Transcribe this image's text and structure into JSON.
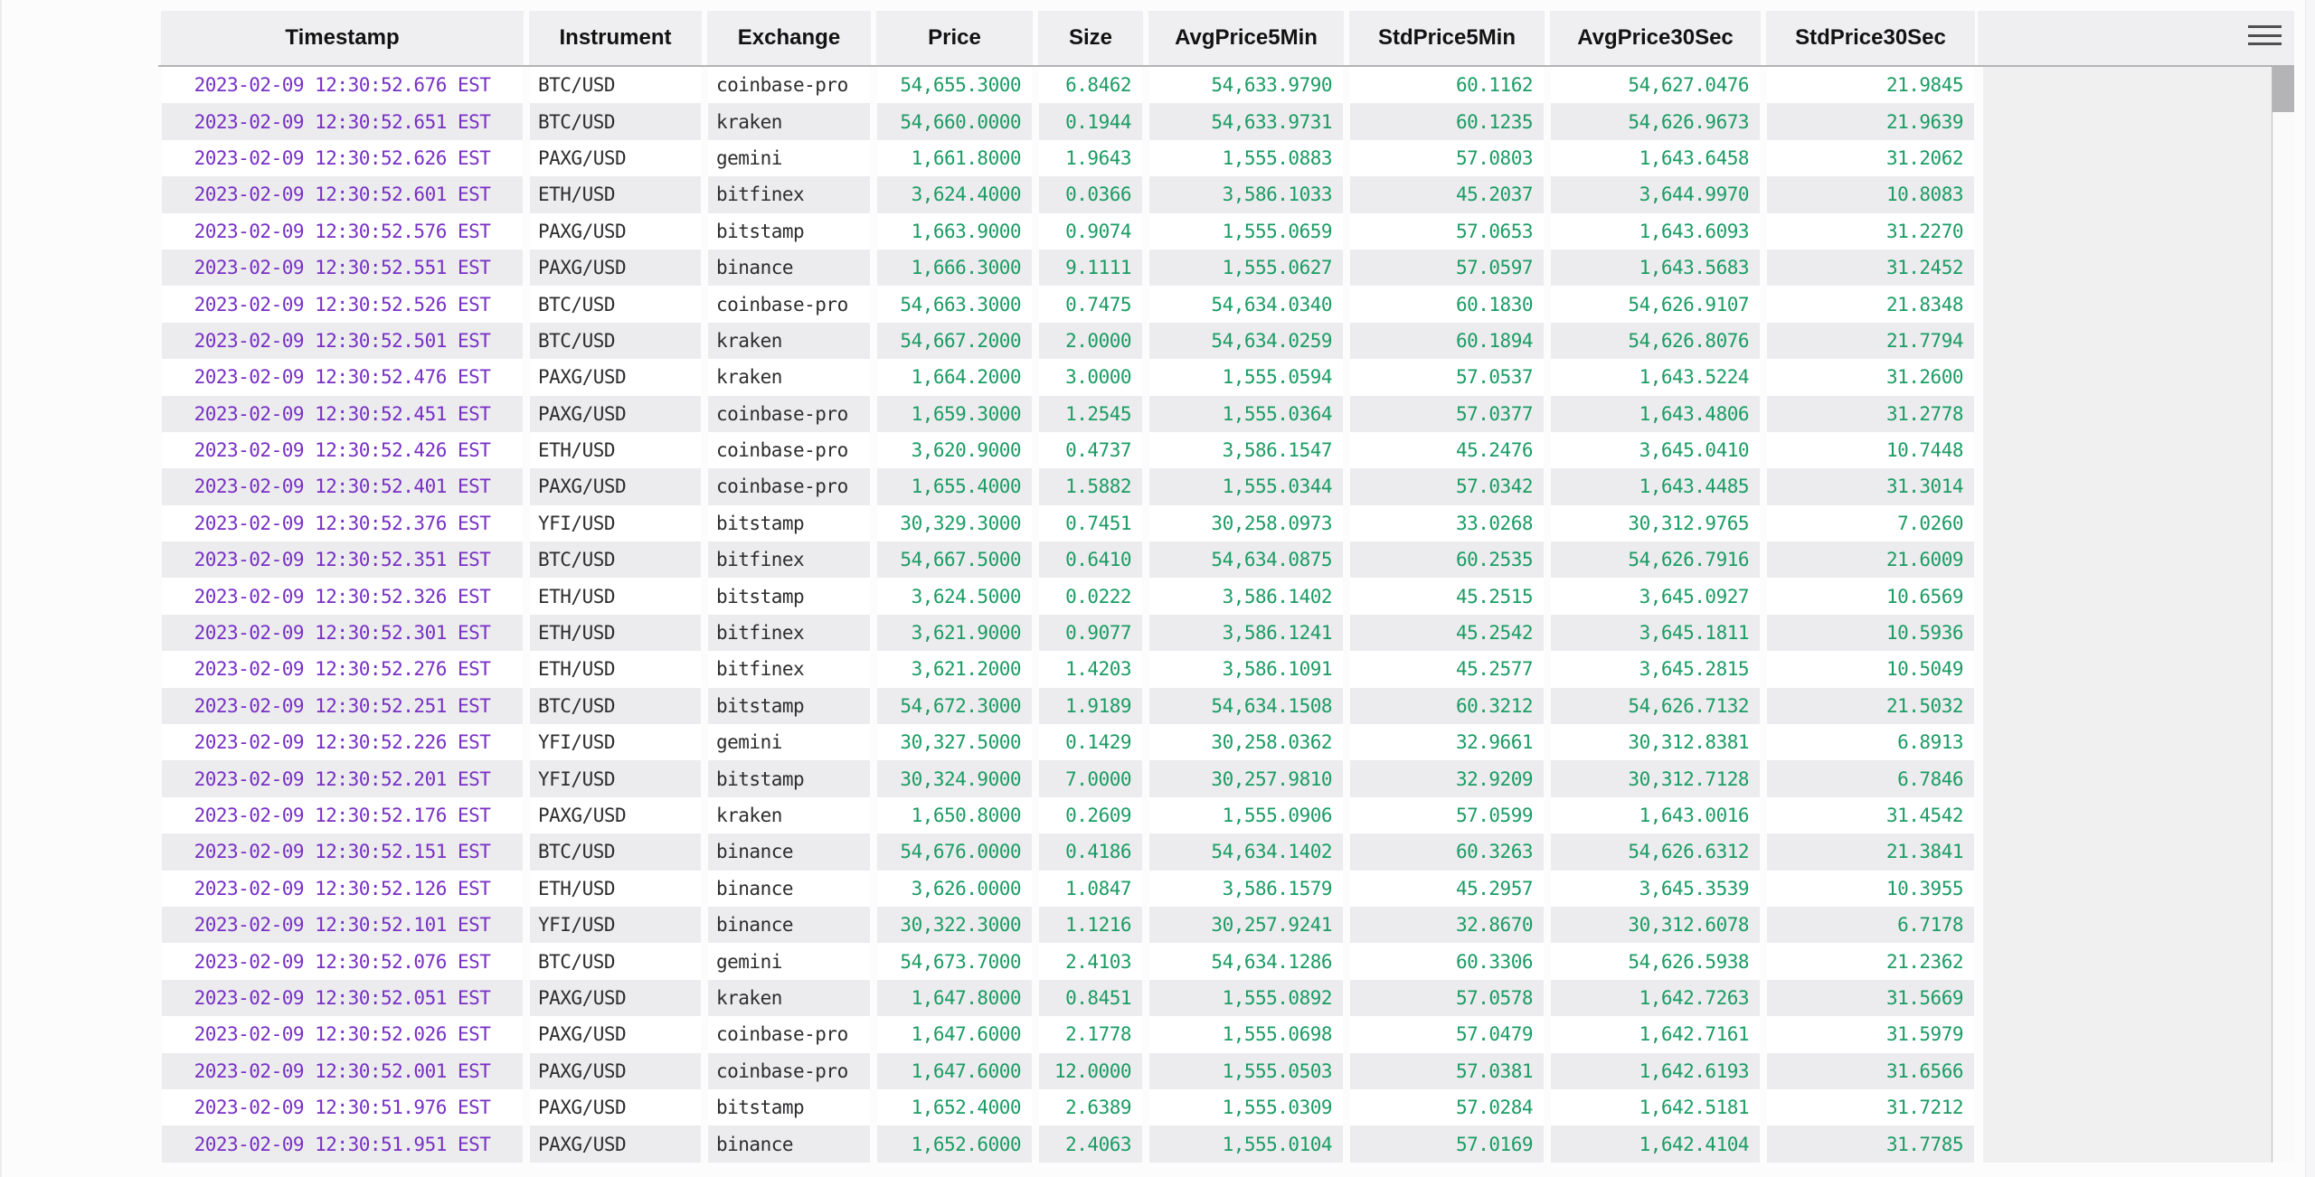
{
  "theme": {
    "datetime_color": "#7730c4",
    "number_color": "#1b9c64",
    "string_color": "#2d2d2f",
    "header_background": "#efeff1",
    "stripe_background": "#ececee"
  },
  "controls": {
    "menu_icon": "hamburger-menu-icon"
  },
  "table": {
    "columns": [
      "Timestamp",
      "Instrument",
      "Exchange",
      "Price",
      "Size",
      "AvgPrice5Min",
      "StdPrice5Min",
      "AvgPrice30Sec",
      "StdPrice30Sec"
    ],
    "col_types": [
      "datetime",
      "string",
      "string",
      "number",
      "number",
      "number",
      "number",
      "number",
      "number"
    ],
    "rows": [
      [
        "2023-02-09 12:30:52.676 EST",
        "BTC/USD",
        "coinbase-pro",
        "54,655.3000",
        "6.8462",
        "54,633.9790",
        "60.1162",
        "54,627.0476",
        "21.9845"
      ],
      [
        "2023-02-09 12:30:52.651 EST",
        "BTC/USD",
        "kraken",
        "54,660.0000",
        "0.1944",
        "54,633.9731",
        "60.1235",
        "54,626.9673",
        "21.9639"
      ],
      [
        "2023-02-09 12:30:52.626 EST",
        "PAXG/USD",
        "gemini",
        "1,661.8000",
        "1.9643",
        "1,555.0883",
        "57.0803",
        "1,643.6458",
        "31.2062"
      ],
      [
        "2023-02-09 12:30:52.601 EST",
        "ETH/USD",
        "bitfinex",
        "3,624.4000",
        "0.0366",
        "3,586.1033",
        "45.2037",
        "3,644.9970",
        "10.8083"
      ],
      [
        "2023-02-09 12:30:52.576 EST",
        "PAXG/USD",
        "bitstamp",
        "1,663.9000",
        "0.9074",
        "1,555.0659",
        "57.0653",
        "1,643.6093",
        "31.2270"
      ],
      [
        "2023-02-09 12:30:52.551 EST",
        "PAXG/USD",
        "binance",
        "1,666.3000",
        "9.1111",
        "1,555.0627",
        "57.0597",
        "1,643.5683",
        "31.2452"
      ],
      [
        "2023-02-09 12:30:52.526 EST",
        "BTC/USD",
        "coinbase-pro",
        "54,663.3000",
        "0.7475",
        "54,634.0340",
        "60.1830",
        "54,626.9107",
        "21.8348"
      ],
      [
        "2023-02-09 12:30:52.501 EST",
        "BTC/USD",
        "kraken",
        "54,667.2000",
        "2.0000",
        "54,634.0259",
        "60.1894",
        "54,626.8076",
        "21.7794"
      ],
      [
        "2023-02-09 12:30:52.476 EST",
        "PAXG/USD",
        "kraken",
        "1,664.2000",
        "3.0000",
        "1,555.0594",
        "57.0537",
        "1,643.5224",
        "31.2600"
      ],
      [
        "2023-02-09 12:30:52.451 EST",
        "PAXG/USD",
        "coinbase-pro",
        "1,659.3000",
        "1.2545",
        "1,555.0364",
        "57.0377",
        "1,643.4806",
        "31.2778"
      ],
      [
        "2023-02-09 12:30:52.426 EST",
        "ETH/USD",
        "coinbase-pro",
        "3,620.9000",
        "0.4737",
        "3,586.1547",
        "45.2476",
        "3,645.0410",
        "10.7448"
      ],
      [
        "2023-02-09 12:30:52.401 EST",
        "PAXG/USD",
        "coinbase-pro",
        "1,655.4000",
        "1.5882",
        "1,555.0344",
        "57.0342",
        "1,643.4485",
        "31.3014"
      ],
      [
        "2023-02-09 12:30:52.376 EST",
        "YFI/USD",
        "bitstamp",
        "30,329.3000",
        "0.7451",
        "30,258.0973",
        "33.0268",
        "30,312.9765",
        "7.0260"
      ],
      [
        "2023-02-09 12:30:52.351 EST",
        "BTC/USD",
        "bitfinex",
        "54,667.5000",
        "0.6410",
        "54,634.0875",
        "60.2535",
        "54,626.7916",
        "21.6009"
      ],
      [
        "2023-02-09 12:30:52.326 EST",
        "ETH/USD",
        "bitstamp",
        "3,624.5000",
        "0.0222",
        "3,586.1402",
        "45.2515",
        "3,645.0927",
        "10.6569"
      ],
      [
        "2023-02-09 12:30:52.301 EST",
        "ETH/USD",
        "bitfinex",
        "3,621.9000",
        "0.9077",
        "3,586.1241",
        "45.2542",
        "3,645.1811",
        "10.5936"
      ],
      [
        "2023-02-09 12:30:52.276 EST",
        "ETH/USD",
        "bitfinex",
        "3,621.2000",
        "1.4203",
        "3,586.1091",
        "45.2577",
        "3,645.2815",
        "10.5049"
      ],
      [
        "2023-02-09 12:30:52.251 EST",
        "BTC/USD",
        "bitstamp",
        "54,672.3000",
        "1.9189",
        "54,634.1508",
        "60.3212",
        "54,626.7132",
        "21.5032"
      ],
      [
        "2023-02-09 12:30:52.226 EST",
        "YFI/USD",
        "gemini",
        "30,327.5000",
        "0.1429",
        "30,258.0362",
        "32.9661",
        "30,312.8381",
        "6.8913"
      ],
      [
        "2023-02-09 12:30:52.201 EST",
        "YFI/USD",
        "bitstamp",
        "30,324.9000",
        "7.0000",
        "30,257.9810",
        "32.9209",
        "30,312.7128",
        "6.7846"
      ],
      [
        "2023-02-09 12:30:52.176 EST",
        "PAXG/USD",
        "kraken",
        "1,650.8000",
        "0.2609",
        "1,555.0906",
        "57.0599",
        "1,643.0016",
        "31.4542"
      ],
      [
        "2023-02-09 12:30:52.151 EST",
        "BTC/USD",
        "binance",
        "54,676.0000",
        "0.4186",
        "54,634.1402",
        "60.3263",
        "54,626.6312",
        "21.3841"
      ],
      [
        "2023-02-09 12:30:52.126 EST",
        "ETH/USD",
        "binance",
        "3,626.0000",
        "1.0847",
        "3,586.1579",
        "45.2957",
        "3,645.3539",
        "10.3955"
      ],
      [
        "2023-02-09 12:30:52.101 EST",
        "YFI/USD",
        "binance",
        "30,322.3000",
        "1.1216",
        "30,257.9241",
        "32.8670",
        "30,312.6078",
        "6.7178"
      ],
      [
        "2023-02-09 12:30:52.076 EST",
        "BTC/USD",
        "gemini",
        "54,673.7000",
        "2.4103",
        "54,634.1286",
        "60.3306",
        "54,626.5938",
        "21.2362"
      ],
      [
        "2023-02-09 12:30:52.051 EST",
        "PAXG/USD",
        "kraken",
        "1,647.8000",
        "0.8451",
        "1,555.0892",
        "57.0578",
        "1,642.7263",
        "31.5669"
      ],
      [
        "2023-02-09 12:30:52.026 EST",
        "PAXG/USD",
        "coinbase-pro",
        "1,647.6000",
        "2.1778",
        "1,555.0698",
        "57.0479",
        "1,642.7161",
        "31.5979"
      ],
      [
        "2023-02-09 12:30:52.001 EST",
        "PAXG/USD",
        "coinbase-pro",
        "1,647.6000",
        "12.0000",
        "1,555.0503",
        "57.0381",
        "1,642.6193",
        "31.6566"
      ],
      [
        "2023-02-09 12:30:51.976 EST",
        "PAXG/USD",
        "bitstamp",
        "1,652.4000",
        "2.6389",
        "1,555.0309",
        "57.0284",
        "1,642.5181",
        "31.7212"
      ],
      [
        "2023-02-09 12:30:51.951 EST",
        "PAXG/USD",
        "binance",
        "1,652.6000",
        "2.4063",
        "1,555.0104",
        "57.0169",
        "1,642.4104",
        "31.7785"
      ]
    ]
  }
}
